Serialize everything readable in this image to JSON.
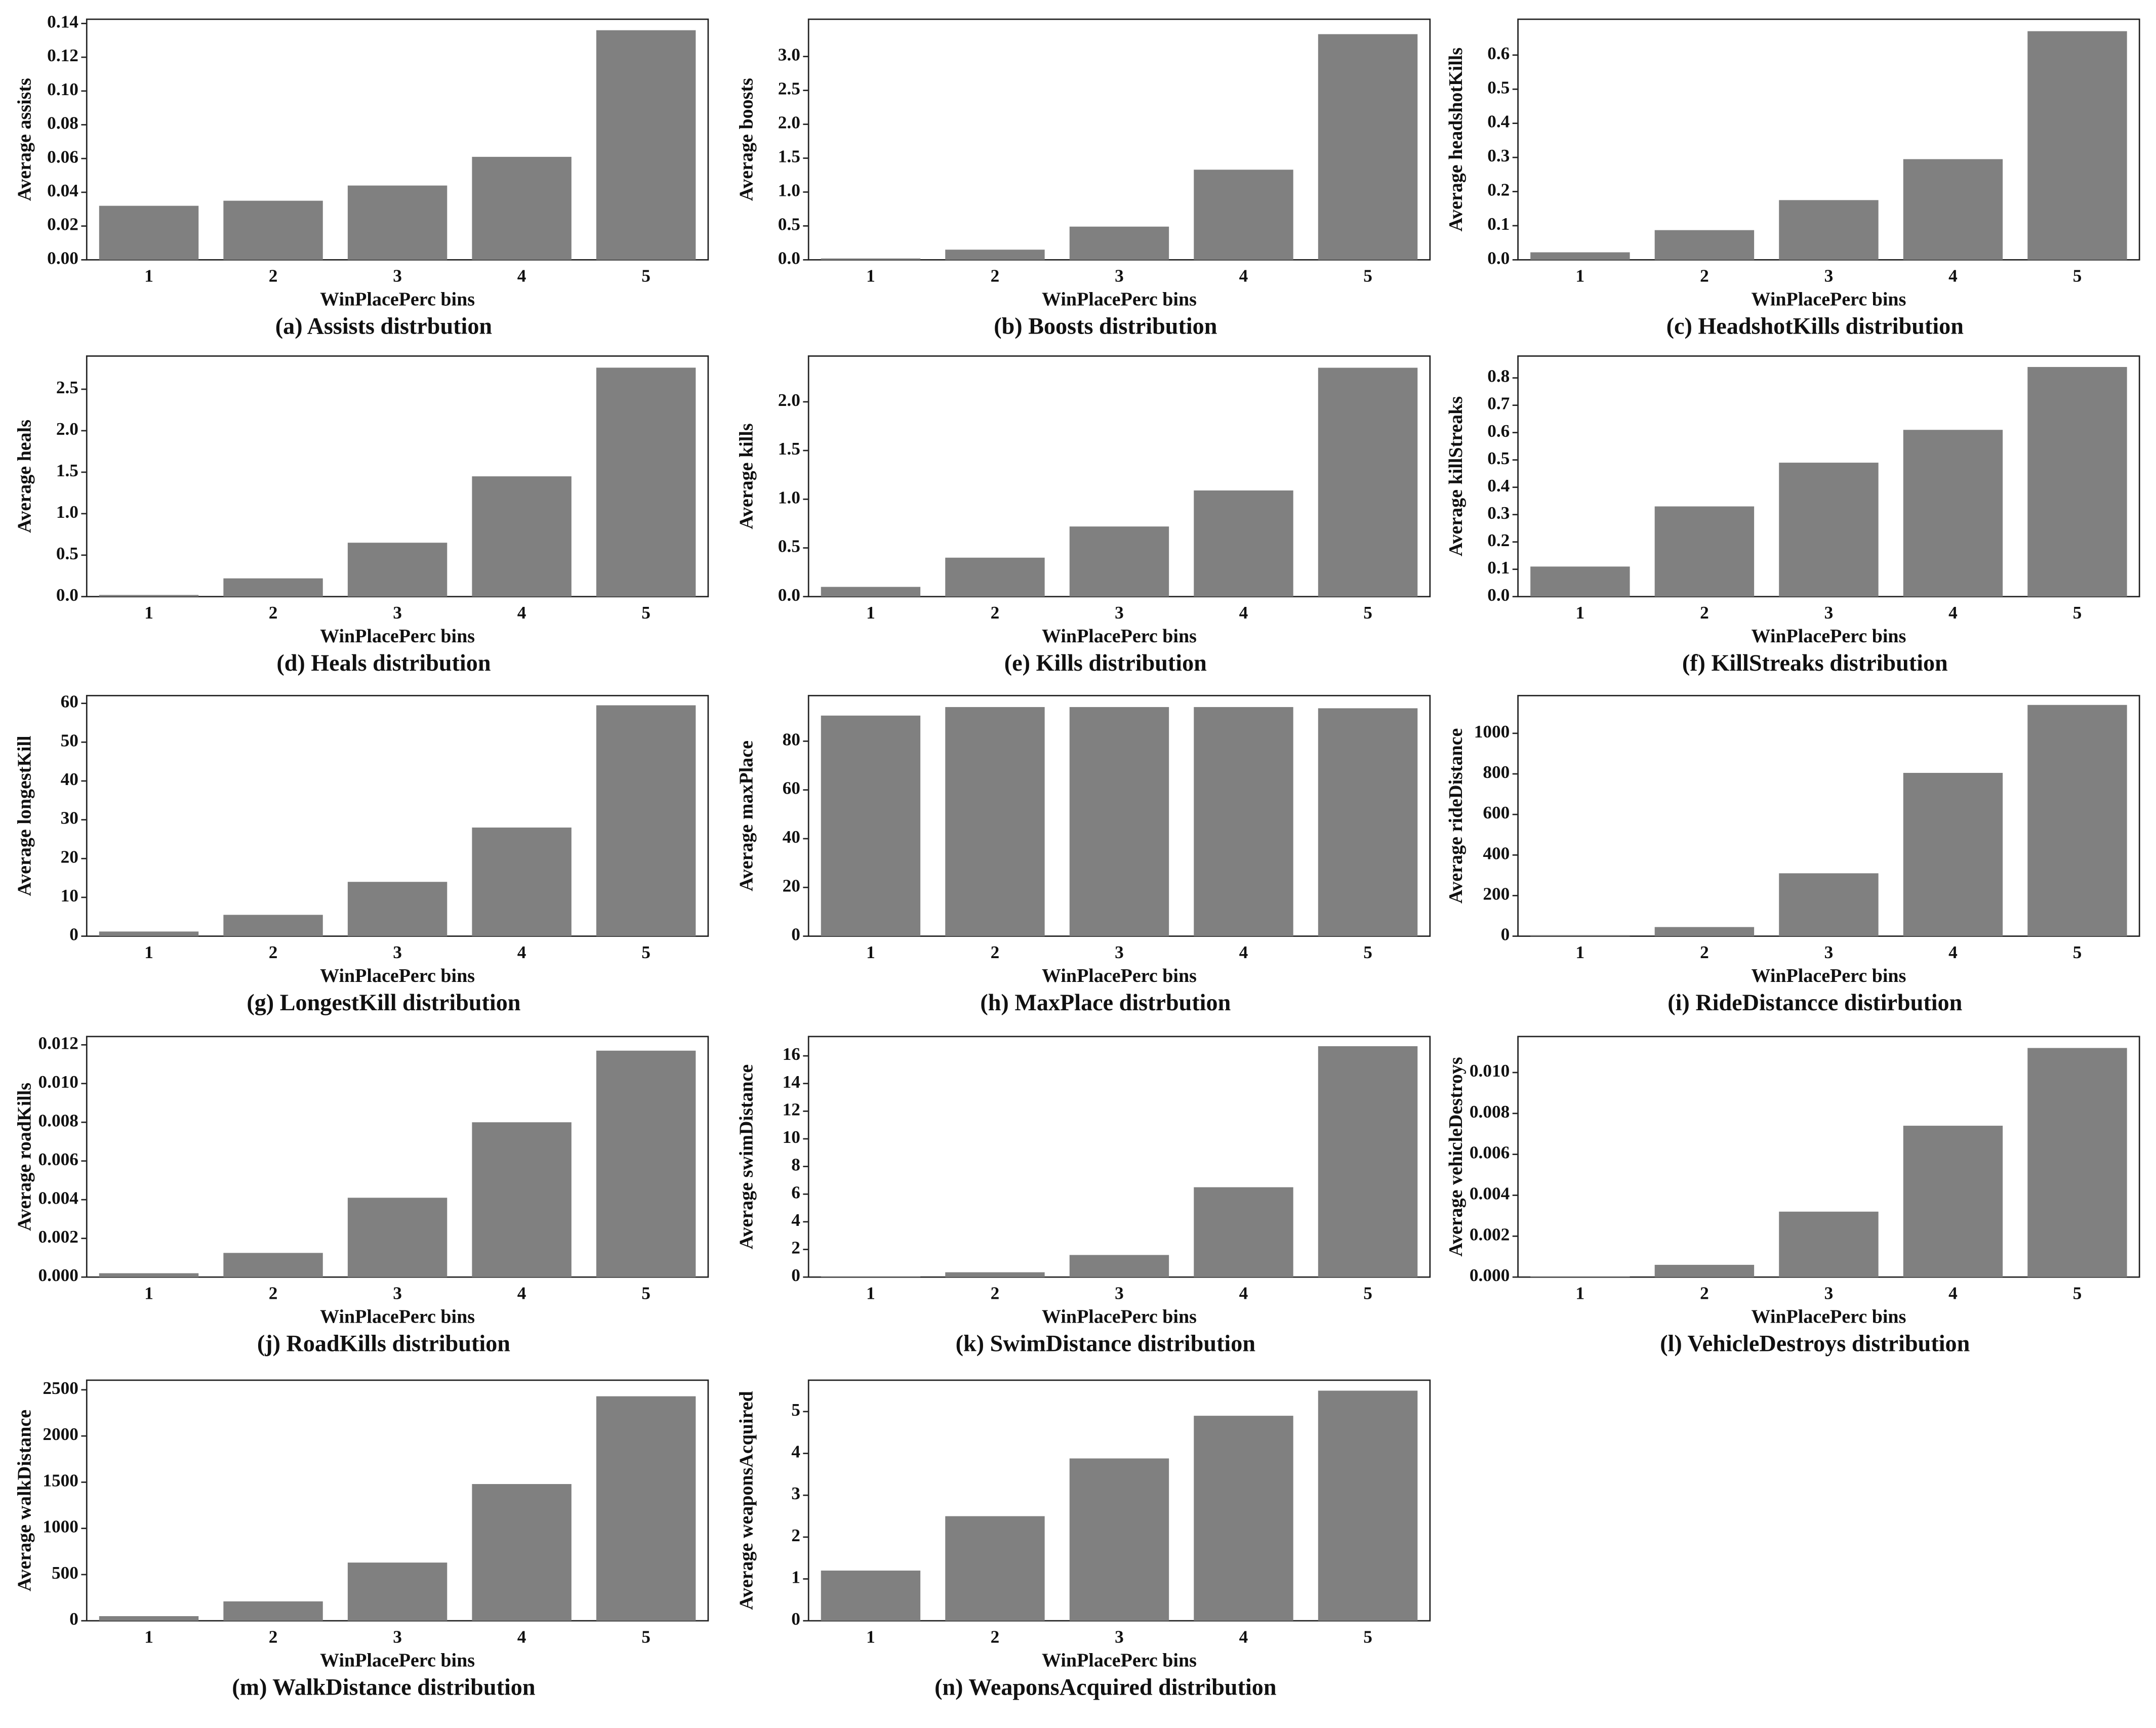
{
  "chart_data": [
    {
      "type": "bar",
      "caption": "(a) Assists distrbution",
      "xlabel": "WinPlacePerc bins",
      "ylabel": "Average assists",
      "categories": [
        "1",
        "2",
        "3",
        "4",
        "5"
      ],
      "values": [
        0.032,
        0.035,
        0.044,
        0.061,
        0.136
      ],
      "color": "#808080",
      "ylim": [
        0,
        0.1425
      ],
      "yticks": [
        {
          "value": 0,
          "label": "0.00"
        },
        0.02,
        0.04,
        0.06,
        0.08,
        {
          "value": 0.1,
          "label": "0.10"
        },
        0.12,
        0.14
      ]
    },
    {
      "type": "bar",
      "caption": "(b) Boosts distribution",
      "xlabel": "WinPlacePerc bins",
      "ylabel": "Average boosts",
      "categories": [
        "1",
        "2",
        "3",
        "4",
        "5"
      ],
      "values": [
        0.02,
        0.15,
        0.49,
        1.33,
        3.33
      ],
      "color": "#808080",
      "ylim": [
        0,
        3.55
      ],
      "yticks": [
        {
          "value": 0,
          "label": "0.0"
        },
        0.5,
        {
          "value": 1,
          "label": "1.0"
        },
        1.5,
        {
          "value": 2,
          "label": "2.0"
        },
        2.5,
        {
          "value": 3,
          "label": "3.0"
        }
      ]
    },
    {
      "type": "bar",
      "caption": "(c) HeadshotKills distribution",
      "xlabel": "WinPlacePerc bins",
      "ylabel": "Average headshotKills",
      "categories": [
        "1",
        "2",
        "3",
        "4",
        "5"
      ],
      "values": [
        0.022,
        0.087,
        0.175,
        0.295,
        0.67
      ],
      "color": "#808080",
      "ylim": [
        0,
        0.705
      ],
      "yticks": [
        {
          "value": 0,
          "label": "0.0"
        },
        0.1,
        0.2,
        0.3,
        0.4,
        0.5,
        0.6
      ]
    },
    {
      "type": "bar",
      "caption": "(d) Heals distribution",
      "xlabel": "WinPlacePerc bins",
      "ylabel": "Average heals",
      "categories": [
        "1",
        "2",
        "3",
        "4",
        "5"
      ],
      "values": [
        0.02,
        0.22,
        0.65,
        1.45,
        2.76
      ],
      "color": "#808080",
      "ylim": [
        0,
        2.9
      ],
      "yticks": [
        {
          "value": 0,
          "label": "0.0"
        },
        0.5,
        {
          "value": 1,
          "label": "1.0"
        },
        1.5,
        {
          "value": 2,
          "label": "2.0"
        },
        2.5
      ]
    },
    {
      "type": "bar",
      "caption": "(e) Kills distribution",
      "xlabel": "WinPlacePerc bins",
      "ylabel": "Average kills",
      "categories": [
        "1",
        "2",
        "3",
        "4",
        "5"
      ],
      "values": [
        0.1,
        0.4,
        0.72,
        1.09,
        2.35
      ],
      "color": "#808080",
      "ylim": [
        0,
        2.47
      ],
      "yticks": [
        {
          "value": 0,
          "label": "0.0"
        },
        0.5,
        {
          "value": 1,
          "label": "1.0"
        },
        1.5,
        {
          "value": 2,
          "label": "2.0"
        }
      ]
    },
    {
      "type": "bar",
      "caption": "(f) KillStreaks distribution",
      "xlabel": "WinPlacePerc bins",
      "ylabel": "Average killStreaks",
      "categories": [
        "1",
        "2",
        "3",
        "4",
        "5"
      ],
      "values": [
        0.11,
        0.33,
        0.49,
        0.61,
        0.84
      ],
      "color": "#808080",
      "ylim": [
        0,
        0.88
      ],
      "yticks": [
        {
          "value": 0,
          "label": "0.0"
        },
        0.1,
        0.2,
        0.3,
        0.4,
        0.5,
        0.6,
        0.7,
        0.8
      ]
    },
    {
      "type": "bar",
      "caption": "(g) LongestKill distribution",
      "xlabel": "WinPlacePerc bins",
      "ylabel": "Average longestKill",
      "categories": [
        "1",
        "2",
        "3",
        "4",
        "5"
      ],
      "values": [
        1.2,
        5.5,
        14,
        28,
        59.5
      ],
      "color": "#808080",
      "ylim": [
        0,
        62
      ],
      "yticks": [
        0,
        10,
        20,
        30,
        40,
        50,
        60
      ]
    },
    {
      "type": "bar",
      "caption": "(h) MaxPlace distrbution",
      "xlabel": "WinPlacePerc bins",
      "ylabel": "Average maxPlace",
      "categories": [
        "1",
        "2",
        "3",
        "4",
        "5"
      ],
      "values": [
        90.5,
        94,
        94,
        94,
        93.5
      ],
      "color": "#808080",
      "ylim": [
        0,
        98.7
      ],
      "yticks": [
        0,
        20,
        40,
        60,
        80
      ]
    },
    {
      "type": "bar",
      "caption": "(i) RideDistancce distirbution",
      "xlabel": "WinPlacePerc bins",
      "ylabel": "Average rideDistance",
      "categories": [
        "1",
        "2",
        "3",
        "4",
        "5"
      ],
      "values": [
        5,
        45,
        310,
        805,
        1140
      ],
      "color": "#808080",
      "ylim": [
        0,
        1186
      ],
      "yticks": [
        0,
        200,
        400,
        600,
        800,
        1000
      ]
    },
    {
      "type": "bar",
      "caption": "(j) RoadKills distribution",
      "xlabel": "WinPlacePerc bins",
      "ylabel": "Average roadKills",
      "categories": [
        "1",
        "2",
        "3",
        "4",
        "5"
      ],
      "values": [
        0.0002,
        0.00125,
        0.0041,
        0.008,
        0.0117
      ],
      "color": "#808080",
      "ylim": [
        0,
        0.01243
      ],
      "yticks": [
        {
          "value": 0,
          "label": "0.000"
        },
        0.002,
        0.004,
        0.006,
        0.008,
        {
          "value": 0.01,
          "label": "0.010"
        },
        0.012
      ]
    },
    {
      "type": "bar",
      "caption": "(k) SwimDistance distribution",
      "xlabel": "WinPlacePerc bins",
      "ylabel": "Average swimDistance",
      "categories": [
        "1",
        "2",
        "3",
        "4",
        "5"
      ],
      "values": [
        0.05,
        0.35,
        1.6,
        6.5,
        16.7
      ],
      "color": "#808080",
      "ylim": [
        0,
        17.4
      ],
      "yticks": [
        0,
        2,
        4,
        6,
        8,
        10,
        12,
        14,
        16
      ]
    },
    {
      "type": "bar",
      "caption": "(l) VehicleDestroys distribution",
      "xlabel": "WinPlacePerc bins",
      "ylabel": "Average vehicleDestroys",
      "categories": [
        "1",
        "2",
        "3",
        "4",
        "5"
      ],
      "values": [
        3e-05,
        0.0006,
        0.0032,
        0.0074,
        0.0112
      ],
      "color": "#808080",
      "ylim": [
        0,
        0.01176
      ],
      "yticks": [
        {
          "value": 0,
          "label": "0.000"
        },
        0.002,
        0.004,
        0.006,
        0.008,
        {
          "value": 0.01,
          "label": "0.010"
        }
      ]
    },
    {
      "type": "bar",
      "caption": "(m) WalkDistance distribution",
      "xlabel": "WinPlacePerc bins",
      "ylabel": "Average walkDistance",
      "categories": [
        "1",
        "2",
        "3",
        "4",
        "5"
      ],
      "values": [
        50,
        210,
        630,
        1480,
        2430
      ],
      "color": "#808080",
      "ylim": [
        0,
        2604
      ],
      "yticks": [
        0,
        500,
        1000,
        1500,
        2000,
        2500
      ]
    },
    {
      "type": "bar",
      "caption": "(n) WeaponsAcquired distribution",
      "xlabel": "WinPlacePerc bins",
      "ylabel": "Average weaponsAcquired",
      "categories": [
        "1",
        "2",
        "3",
        "4",
        "5"
      ],
      "values": [
        1.2,
        2.5,
        3.88,
        4.9,
        5.5
      ],
      "color": "#808080",
      "ylim": [
        0,
        5.75
      ],
      "yticks": [
        0,
        1,
        2,
        3,
        4,
        5
      ]
    }
  ]
}
